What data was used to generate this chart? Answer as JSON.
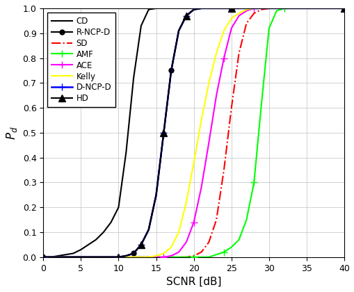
{
  "title": "",
  "xlabel": "SCNR [dB]",
  "ylabel": "$P_d$",
  "xlim": [
    0,
    40
  ],
  "ylim": [
    0,
    1
  ],
  "xticks": [
    0,
    5,
    10,
    15,
    20,
    25,
    30,
    35,
    40
  ],
  "yticks": [
    0,
    0.1,
    0.2,
    0.3,
    0.4,
    0.5,
    0.6,
    0.7,
    0.8,
    0.9,
    1.0
  ],
  "curves": {
    "CD": {
      "color": "#000000",
      "linestyle": "-",
      "linewidth": 1.5,
      "marker": null,
      "markersize": 5,
      "markevery": null,
      "x": [
        0,
        1,
        2,
        3,
        4,
        5,
        6,
        7,
        8,
        9,
        10,
        11,
        12,
        13,
        14,
        15,
        20,
        25,
        30,
        35,
        40
      ],
      "y": [
        0.0,
        0.0,
        0.005,
        0.01,
        0.015,
        0.03,
        0.05,
        0.07,
        0.1,
        0.14,
        0.2,
        0.42,
        0.72,
        0.93,
        0.995,
        1.0,
        1.0,
        1.0,
        1.0,
        1.0,
        1.0
      ]
    },
    "R-NCP-D": {
      "color": "#000000",
      "linestyle": "-",
      "linewidth": 1.5,
      "marker": "o",
      "markersize": 5,
      "markevery": 5,
      "x": [
        0,
        5,
        9,
        10,
        11,
        12,
        13,
        14,
        15,
        16,
        17,
        18,
        19,
        20,
        21,
        25,
        30,
        35,
        40
      ],
      "y": [
        0.0,
        0.0,
        0.0,
        0.0,
        0.005,
        0.015,
        0.05,
        0.11,
        0.25,
        0.5,
        0.75,
        0.91,
        0.97,
        0.995,
        1.0,
        1.0,
        1.0,
        1.0,
        1.0
      ]
    },
    "SD": {
      "color": "#ff0000",
      "linestyle": "-.",
      "linewidth": 1.5,
      "marker": null,
      "markersize": 5,
      "markevery": null,
      "x": [
        0,
        5,
        10,
        15,
        17,
        18,
        19,
        20,
        21,
        22,
        23,
        24,
        25,
        26,
        27,
        28,
        29,
        30,
        35,
        40
      ],
      "y": [
        0.0,
        0.0,
        0.0,
        0.0,
        0.0,
        0.0,
        0.0,
        0.005,
        0.02,
        0.06,
        0.15,
        0.35,
        0.6,
        0.82,
        0.94,
        0.98,
        0.995,
        1.0,
        1.0,
        1.0
      ]
    },
    "AMF": {
      "color": "#00ff00",
      "linestyle": "-",
      "linewidth": 1.5,
      "marker": "+",
      "markersize": 7,
      "markevery": 4,
      "x": [
        0,
        5,
        10,
        15,
        20,
        21,
        22,
        23,
        24,
        25,
        26,
        27,
        28,
        29,
        30,
        31,
        32,
        33,
        35,
        40
      ],
      "y": [
        0.0,
        0.0,
        0.0,
        0.0,
        0.0,
        0.0,
        0.0,
        0.01,
        0.02,
        0.04,
        0.07,
        0.15,
        0.3,
        0.62,
        0.92,
        0.99,
        1.0,
        1.0,
        1.0,
        1.0
      ]
    },
    "ACE": {
      "color": "#ff00ff",
      "linestyle": "-",
      "linewidth": 1.5,
      "marker": "+",
      "markersize": 7,
      "markevery": 4,
      "x": [
        0,
        5,
        10,
        15,
        16,
        17,
        18,
        19,
        20,
        21,
        22,
        23,
        24,
        25,
        26,
        27,
        28,
        29,
        30,
        35,
        40
      ],
      "y": [
        0.0,
        0.0,
        0.0,
        0.0,
        0.0,
        0.005,
        0.02,
        0.06,
        0.14,
        0.28,
        0.46,
        0.65,
        0.8,
        0.92,
        0.97,
        0.99,
        1.0,
        1.0,
        1.0,
        1.0,
        1.0
      ]
    },
    "Kelly": {
      "color": "#ffff00",
      "linestyle": "-",
      "linewidth": 1.5,
      "marker": null,
      "markersize": 5,
      "markevery": null,
      "x": [
        0,
        5,
        10,
        14,
        15,
        16,
        17,
        18,
        19,
        20,
        21,
        22,
        23,
        24,
        25,
        26,
        27,
        28,
        29,
        30,
        35,
        40
      ],
      "y": [
        0.0,
        0.0,
        0.0,
        0.0,
        0.005,
        0.015,
        0.04,
        0.1,
        0.22,
        0.38,
        0.55,
        0.7,
        0.82,
        0.91,
        0.96,
        0.98,
        0.995,
        1.0,
        1.0,
        1.0,
        1.0,
        1.0
      ]
    },
    "D-NCP-D": {
      "color": "#0000ff",
      "linestyle": "-",
      "linewidth": 1.8,
      "marker": "+",
      "markersize": 7,
      "markevery": 3,
      "x": [
        0,
        5,
        9,
        10,
        11,
        12,
        13,
        14,
        15,
        16,
        17,
        18,
        19,
        20,
        21,
        25,
        30,
        35,
        40
      ],
      "y": [
        0.0,
        0.0,
        0.0,
        0.0,
        0.005,
        0.015,
        0.05,
        0.11,
        0.25,
        0.5,
        0.75,
        0.91,
        0.97,
        0.995,
        1.0,
        1.0,
        1.0,
        1.0,
        1.0
      ]
    },
    "HD": {
      "color": "#000000",
      "linestyle": "-",
      "linewidth": 1.5,
      "marker": "^",
      "markersize": 7,
      "markevery": 3,
      "x": [
        0,
        5,
        9,
        10,
        11,
        12,
        13,
        14,
        15,
        16,
        17,
        18,
        19,
        20,
        21,
        25,
        30,
        35,
        40
      ],
      "y": [
        0.0,
        0.0,
        0.0,
        0.0,
        0.005,
        0.015,
        0.05,
        0.11,
        0.25,
        0.5,
        0.75,
        0.91,
        0.97,
        0.995,
        1.0,
        1.0,
        1.0,
        1.0,
        1.0
      ]
    }
  },
  "legend_order": [
    "CD",
    "R-NCP-D",
    "SD",
    "AMF",
    "ACE",
    "Kelly",
    "D-NCP-D",
    "HD"
  ],
  "background_color": "#ffffff",
  "grid": true
}
